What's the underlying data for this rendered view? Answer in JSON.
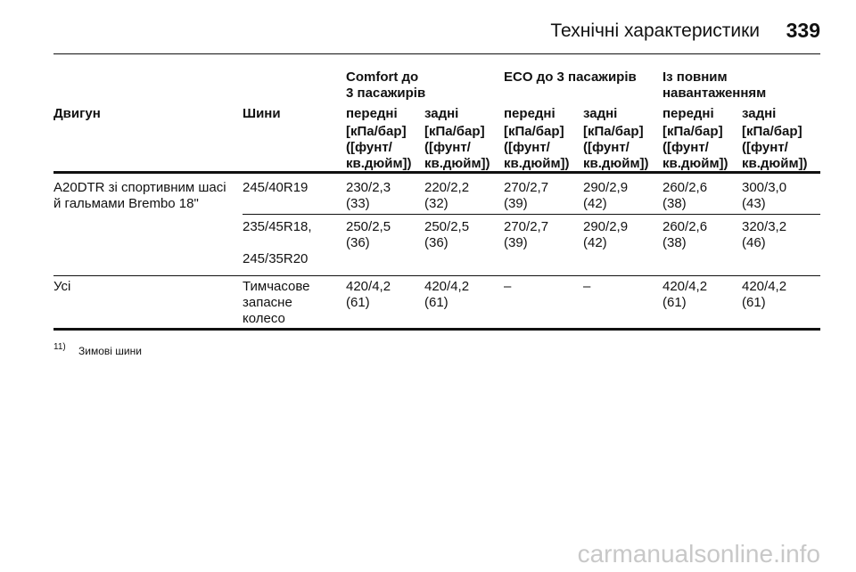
{
  "header": {
    "title": "Технічні характеристики",
    "page_number": "339"
  },
  "table": {
    "group_headers": [
      "Comfort до\n3 пасажирів",
      "ECO до 3 пасажирів",
      "Із повним\nнавантаженням"
    ],
    "columns": [
      "Двигун",
      "Шини",
      "передні",
      "задні",
      "передні",
      "задні",
      "передні",
      "задні"
    ],
    "units": [
      "[кПа/бар]\n([фунт/\nкв.дюйм])",
      "[кПа/бар]\n([фунт/\nкв.дюйм])",
      "[кПа/бар]\n([фунт/\nкв.дюйм])",
      "[кПа/бар]\n([фунт/\nкв.дюйм])",
      "[кПа/бар]\n([фунт/\nкв.дюйм])",
      "[кПа/бар]\n([фунт/\nкв.дюйм])"
    ],
    "rows": [
      [
        "A20DTR зі спортивним шасі\nй гальмами Brembo 18\"",
        "245/40R19",
        "230/2,3\n(33)",
        "220/2,2\n(32)",
        "270/2,7\n(39)",
        "290/2,9\n(42)",
        "260/2,6\n(38)",
        "300/3,0\n(43)"
      ],
      [
        null,
        "235/45R18,\n\n245/35R20",
        "250/2,5\n(36)",
        "250/2,5\n(36)",
        "270/2,7\n(39)",
        "290/2,9\n(42)",
        "260/2,6\n(38)",
        "320/3,2\n(46)"
      ],
      [
        "Усі",
        "Тимчасове\nзапасне\nколесо",
        "420/4,2\n(61)",
        "420/4,2\n(61)",
        "–",
        "–",
        "420/4,2\n(61)",
        "420/4,2\n(61)"
      ]
    ]
  },
  "footnote": {
    "marker": "11)",
    "text": "Зимові шини"
  },
  "watermark": "carmanualsonline.info"
}
